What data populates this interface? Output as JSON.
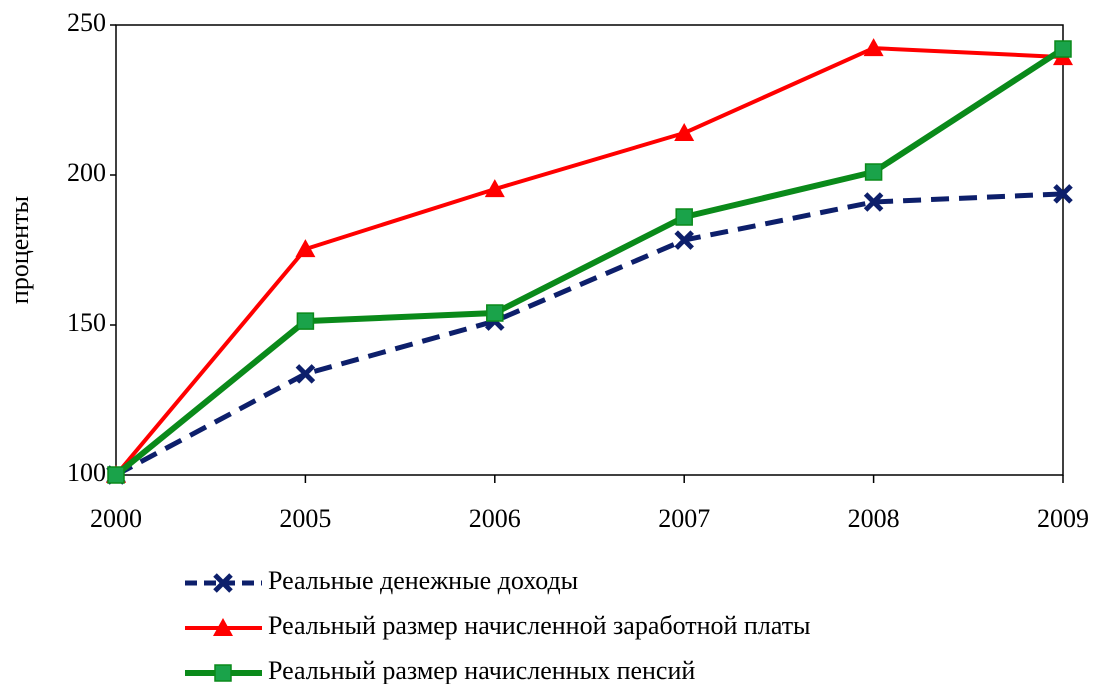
{
  "chart_data": {
    "type": "line",
    "y_label": "проценты",
    "categories": [
      "2000",
      "2005",
      "2006",
      "2007",
      "2008",
      "2009"
    ],
    "series": [
      {
        "name": "Реальные денежные доходы",
        "color": "#0d1f6b",
        "marker": "x",
        "line_style": "dashed",
        "values": [
          100,
          133.7,
          151.3,
          178.3,
          191,
          193.7
        ]
      },
      {
        "name": "Реальный размер начисленной заработной платы",
        "color": "#ff0000",
        "marker": "triangle",
        "line_style": "solid",
        "values": [
          100,
          175.3,
          195.3,
          214,
          242.3,
          239.3
        ]
      },
      {
        "name": "Реальный размер начисленных пенсий",
        "color": "#0a8a1a",
        "marker": "square",
        "line_style": "solid",
        "values": [
          100,
          151.3,
          154,
          186,
          201,
          242
        ]
      }
    ],
    "ylim": [
      100,
      250
    ],
    "yticks": [
      100,
      150,
      200,
      250
    ],
    "grid": false,
    "legend": "bottom"
  }
}
